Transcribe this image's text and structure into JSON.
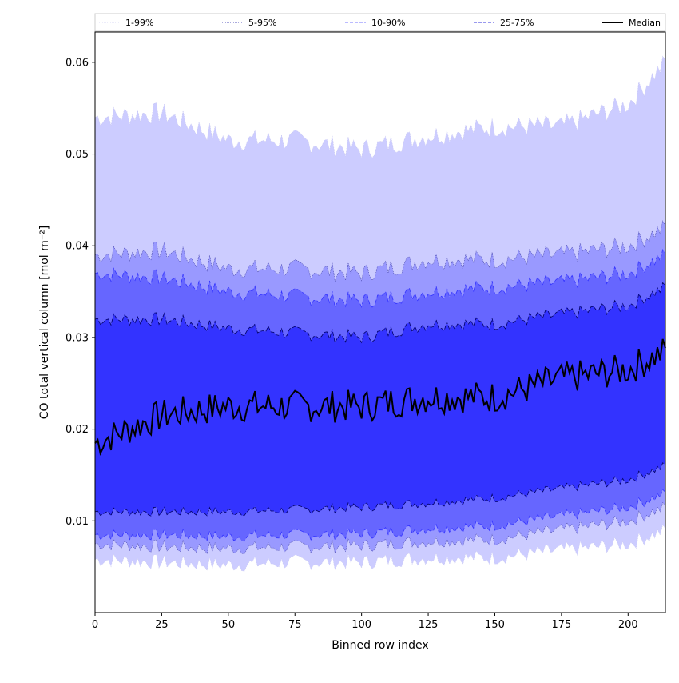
{
  "chart_data": {
    "type": "area",
    "xlabel": "Binned row index",
    "ylabel": "CO total vertical column [mol m⁻²]",
    "xlim": [
      0,
      214
    ],
    "ylim": [
      0,
      0.0633
    ],
    "x_ticks": [
      0,
      25,
      50,
      75,
      100,
      125,
      150,
      175,
      200
    ],
    "x_tick_labels": [
      "0",
      "25",
      "50",
      "75",
      "100",
      "125",
      "150",
      "175",
      "200"
    ],
    "y_ticks": [
      0.01,
      0.02,
      0.03,
      0.04,
      0.05,
      0.06
    ],
    "y_tick_labels": [
      "0.01",
      "0.02",
      "0.03",
      "0.04",
      "0.05",
      "0.06"
    ],
    "grid": false,
    "legend_position": "top, spanning the full width above the plot",
    "legend": [
      "1-99%",
      "5-95%",
      "10-90%",
      "25-75%",
      "Median"
    ],
    "colors": {
      "band_1_99": "#ccccff",
      "band_5_95": "#9999ff",
      "band_10_90": "#6666ff",
      "band_25_75": "#3333ff",
      "median_line": "#000000"
    },
    "x": [
      0,
      25,
      50,
      75,
      100,
      125,
      150,
      175,
      200,
      214
    ],
    "series": [
      {
        "name": "Median",
        "values": [
          0.0185,
          0.0215,
          0.0225,
          0.0225,
          0.0225,
          0.0235,
          0.0235,
          0.0255,
          0.0265,
          0.0285
        ]
      }
    ],
    "bands": [
      {
        "name": "1-99%",
        "lower": [
          0.0058,
          0.0055,
          0.0052,
          0.0055,
          0.0055,
          0.006,
          0.006,
          0.0068,
          0.0075,
          0.009
        ],
        "upper": [
          0.054,
          0.0545,
          0.0515,
          0.0515,
          0.0505,
          0.052,
          0.053,
          0.053,
          0.0555,
          0.06
        ]
      },
      {
        "name": "5-95%",
        "lower": [
          0.0075,
          0.0072,
          0.007,
          0.0072,
          0.0073,
          0.0078,
          0.008,
          0.009,
          0.01,
          0.0115
        ],
        "upper": [
          0.039,
          0.0395,
          0.0375,
          0.0375,
          0.037,
          0.0385,
          0.0385,
          0.039,
          0.04,
          0.042
        ]
      },
      {
        "name": "10-90%",
        "lower": [
          0.0085,
          0.0085,
          0.0083,
          0.0085,
          0.0086,
          0.0092,
          0.0095,
          0.0105,
          0.0115,
          0.013
        ],
        "upper": [
          0.037,
          0.0365,
          0.035,
          0.0345,
          0.034,
          0.035,
          0.0355,
          0.036,
          0.037,
          0.039
        ]
      },
      {
        "name": "25-75%",
        "lower": [
          0.011,
          0.011,
          0.011,
          0.0112,
          0.0115,
          0.012,
          0.0125,
          0.0135,
          0.0145,
          0.016
        ],
        "upper": [
          0.032,
          0.032,
          0.031,
          0.0305,
          0.03,
          0.0315,
          0.0315,
          0.0325,
          0.0335,
          0.0355
        ]
      }
    ]
  }
}
